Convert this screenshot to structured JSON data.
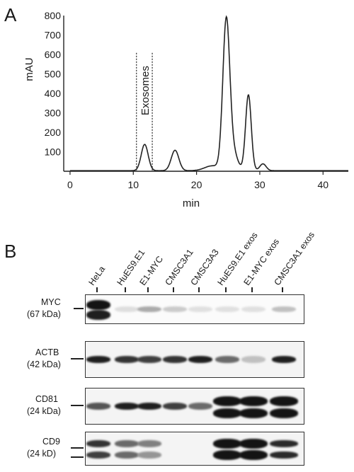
{
  "panel_a_label": "A",
  "panel_b_label": "B",
  "chart_data": {
    "type": "line",
    "xlabel": "min",
    "ylabel": "mAU",
    "xlim": [
      -1,
      44
    ],
    "ylim": [
      0,
      800
    ],
    "x_ticks": [
      0,
      10,
      20,
      30,
      40
    ],
    "y_ticks": [
      100,
      200,
      300,
      400,
      500,
      600,
      700,
      800
    ],
    "annotation": "Exosomes",
    "fraction_window": [
      10.5,
      13
    ],
    "peaks": [
      {
        "center": 11.8,
        "height": 135,
        "width": 0.55
      },
      {
        "center": 16.6,
        "height": 105,
        "width": 0.6
      },
      {
        "center": 22.5,
        "height": 25,
        "width": 1.2
      },
      {
        "center": 24.7,
        "height": 760,
        "width": 0.55
      },
      {
        "center": 25.8,
        "height": 90,
        "width": 0.7
      },
      {
        "center": 28.2,
        "height": 390,
        "width": 0.45
      },
      {
        "center": 30.5,
        "height": 35,
        "width": 0.5
      }
    ],
    "baseline": 3
  },
  "blot": {
    "lanes": [
      "HeLa",
      "HuES9.E1",
      "E1-MYC",
      "CMSC3A1",
      "CMSC3A3",
      "HuES9.E1 exos",
      "E1-MYC exos",
      "CMSC3A1 exos"
    ],
    "rows": [
      {
        "name": "MYC",
        "mw": "(67 kDa)"
      },
      {
        "name": "ACTB",
        "mw": "(42 kDa)"
      },
      {
        "name": "CD81",
        "mw": "(24 kDa)"
      },
      {
        "name": "CD9",
        "mw": "(24 kD)"
      }
    ]
  }
}
